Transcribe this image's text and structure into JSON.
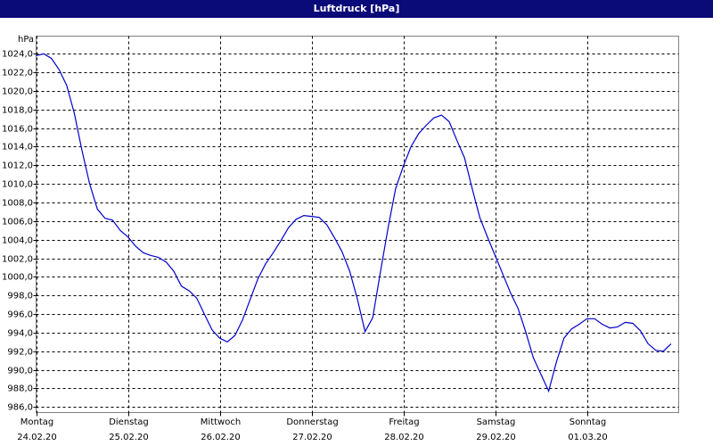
{
  "chart_data": {
    "type": "line",
    "title": "Luftdruck [hPa]",
    "y_label": "hPa",
    "x": [
      0,
      2,
      4,
      6,
      8,
      10,
      12,
      14,
      16,
      18,
      20,
      22,
      24,
      26,
      28,
      30,
      32,
      34,
      36,
      38,
      40,
      42,
      44,
      46,
      48,
      50,
      52,
      54,
      56,
      58,
      60,
      62,
      64,
      66,
      68,
      70,
      72,
      74,
      76,
      78,
      80,
      82,
      84,
      86,
      88,
      90,
      92,
      94,
      96,
      98,
      100,
      102,
      104,
      106,
      108,
      110,
      112,
      114,
      116,
      118,
      120,
      122,
      124,
      126,
      128,
      130,
      132,
      134,
      136,
      138,
      140,
      142,
      144,
      146,
      148,
      150,
      152,
      154,
      156,
      158,
      160,
      162,
      164,
      166
    ],
    "values": [
      1023.8,
      1024.0,
      1023.5,
      1022.3,
      1020.6,
      1017.6,
      1013.6,
      1010.0,
      1007.3,
      1006.3,
      1006.1,
      1005.0,
      1004.3,
      1003.3,
      1002.6,
      1002.3,
      1002.1,
      1001.6,
      1000.6,
      999.0,
      998.5,
      997.7,
      996.0,
      994.3,
      993.4,
      993.0,
      993.7,
      995.4,
      997.6,
      999.8,
      1001.4,
      1002.6,
      1003.9,
      1005.3,
      1006.2,
      1006.6,
      1006.5,
      1006.4,
      1005.6,
      1004.2,
      1002.7,
      1000.6,
      997.6,
      994.1,
      995.6,
      1000.5,
      1005.2,
      1009.5,
      1011.9,
      1014.0,
      1015.4,
      1016.3,
      1017.1,
      1017.4,
      1016.7,
      1014.7,
      1012.8,
      1009.5,
      1006.4,
      1004.3,
      1002.3,
      1000.3,
      998.3,
      996.6,
      994.1,
      991.3,
      989.5,
      987.7,
      990.8,
      993.4,
      994.4,
      994.9,
      995.5,
      995.5,
      994.9,
      994.5,
      994.6,
      995.1,
      995.0,
      994.2,
      992.8,
      992.1,
      992.0,
      992.8
    ],
    "color": "#0000cc",
    "xlim": [
      0,
      168
    ],
    "xticks": [
      {
        "value": 0,
        "label": "Montag",
        "date": "24.02.20"
      },
      {
        "value": 24,
        "label": "Dienstag",
        "date": "25.02.20"
      },
      {
        "value": 48,
        "label": "Mittwoch",
        "date": "26.02.20"
      },
      {
        "value": 72,
        "label": "Donnerstag",
        "date": "27.02.20"
      },
      {
        "value": 96,
        "label": "Freitag",
        "date": "28.02.20"
      },
      {
        "value": 120,
        "label": "Samstag",
        "date": "29.02.20"
      },
      {
        "value": 144,
        "label": "Sonntag",
        "date": "01.03.20"
      }
    ],
    "ylim": [
      985.4,
      1025.9
    ],
    "yticks": [
      {
        "value": 986,
        "label": "986,0"
      },
      {
        "value": 988,
        "label": "988,0"
      },
      {
        "value": 990,
        "label": "990,0"
      },
      {
        "value": 992,
        "label": "992,0"
      },
      {
        "value": 994,
        "label": "994,0"
      },
      {
        "value": 996,
        "label": "996,0"
      },
      {
        "value": 998,
        "label": "998,0"
      },
      {
        "value": 1000,
        "label": "1000,0"
      },
      {
        "value": 1002,
        "label": "1002,0"
      },
      {
        "value": 1004,
        "label": "1004,0"
      },
      {
        "value": 1006,
        "label": "1006,0"
      },
      {
        "value": 1008,
        "label": "1008,0"
      },
      {
        "value": 1010,
        "label": "1010,0"
      },
      {
        "value": 1012,
        "label": "1012,0"
      },
      {
        "value": 1014,
        "label": "1014,0"
      },
      {
        "value": 1016,
        "label": "1016,0"
      },
      {
        "value": 1018,
        "label": "1018,0"
      },
      {
        "value": 1020,
        "label": "1020,0"
      },
      {
        "value": 1022,
        "label": "1022,0"
      },
      {
        "value": 1024,
        "label": "1024,0"
      }
    ],
    "grid": true
  }
}
